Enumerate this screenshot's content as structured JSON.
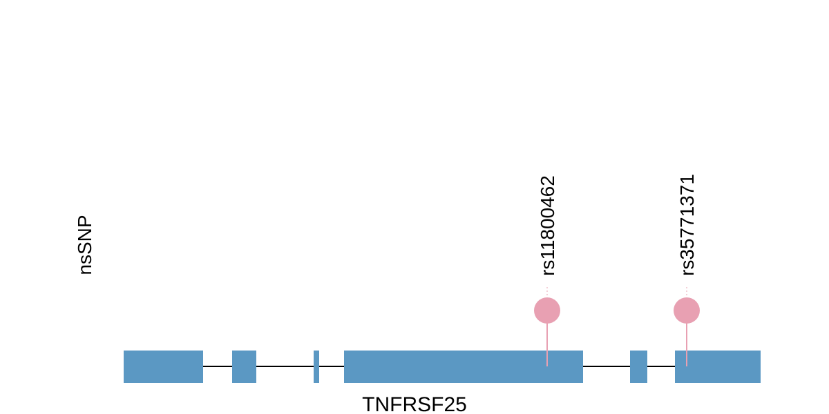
{
  "track": {
    "label": "nsSNP"
  },
  "gene": {
    "name": "TNFRSF25"
  },
  "snps": [
    {
      "label": "rs11800462"
    },
    {
      "label": "rs35771371"
    }
  ]
}
